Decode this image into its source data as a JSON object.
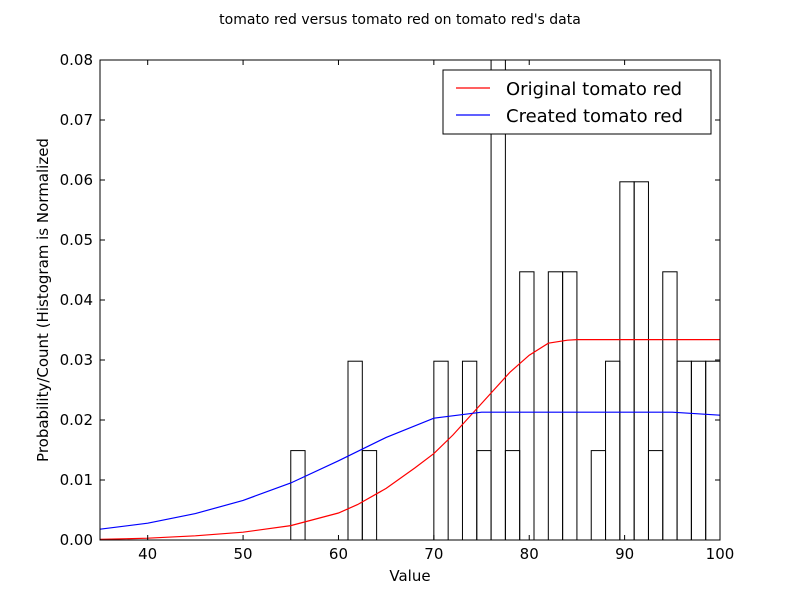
{
  "chart_data": {
    "type": "histogram",
    "title": "tomato red versus tomato red on tomato red's data",
    "xlabel": "Value",
    "ylabel": "Probability/Count (Histogram is Normalized",
    "xlim": [
      35,
      100
    ],
    "ylim": [
      0,
      0.08
    ],
    "xticks": [
      40,
      50,
      60,
      70,
      80,
      90,
      100
    ],
    "yticks": [
      0.0,
      0.01,
      0.02,
      0.03,
      0.04,
      0.05,
      0.06,
      0.07,
      0.08
    ],
    "grid": false,
    "legend_position": "top-right",
    "histogram": {
      "bin_width": 1.5,
      "bins": [
        {
          "x0": 55.0,
          "value": 0.0149
        },
        {
          "x0": 61.0,
          "value": 0.0298
        },
        {
          "x0": 62.5,
          "value": 0.0149
        },
        {
          "x0": 70.0,
          "value": 0.0298
        },
        {
          "x0": 73.0,
          "value": 0.0298
        },
        {
          "x0": 74.5,
          "value": 0.0149
        },
        {
          "x0": 76.0,
          "value": 0.08
        },
        {
          "x0": 77.5,
          "value": 0.0149
        },
        {
          "x0": 79.0,
          "value": 0.0447
        },
        {
          "x0": 82.0,
          "value": 0.0447
        },
        {
          "x0": 83.5,
          "value": 0.0447
        },
        {
          "x0": 86.5,
          "value": 0.0149
        },
        {
          "x0": 88.0,
          "value": 0.0298
        },
        {
          "x0": 89.5,
          "value": 0.0597
        },
        {
          "x0": 91.0,
          "value": 0.0597
        },
        {
          "x0": 92.5,
          "value": 0.0149
        },
        {
          "x0": 94.0,
          "value": 0.0447
        },
        {
          "x0": 95.5,
          "value": 0.0298
        },
        {
          "x0": 97.0,
          "value": 0.0298
        },
        {
          "x0": 98.5,
          "value": 0.0298
        }
      ]
    },
    "series": [
      {
        "name": "Original tomato red",
        "color": "#ff0000",
        "x": [
          35,
          40,
          45,
          50,
          55,
          60,
          62,
          65,
          68,
          70,
          72,
          74,
          76,
          78,
          80,
          82,
          84,
          85,
          90,
          95,
          100
        ],
        "y": [
          0.0001,
          0.0003,
          0.0007,
          0.0013,
          0.0024,
          0.0045,
          0.0059,
          0.0086,
          0.012,
          0.0144,
          0.0175,
          0.021,
          0.0245,
          0.028,
          0.0308,
          0.0328,
          0.0333,
          0.0334,
          0.0334,
          0.0334,
          0.0334
        ]
      },
      {
        "name": "Created tomato red",
        "color": "#0000ff",
        "x": [
          35,
          40,
          45,
          50,
          55,
          60,
          65,
          70,
          75,
          80,
          85,
          90,
          95,
          100
        ],
        "y": [
          0.0018,
          0.0028,
          0.0044,
          0.0066,
          0.0095,
          0.0132,
          0.0171,
          0.0203,
          0.0213,
          0.0213,
          0.0213,
          0.0213,
          0.0213,
          0.0208
        ]
      }
    ]
  }
}
